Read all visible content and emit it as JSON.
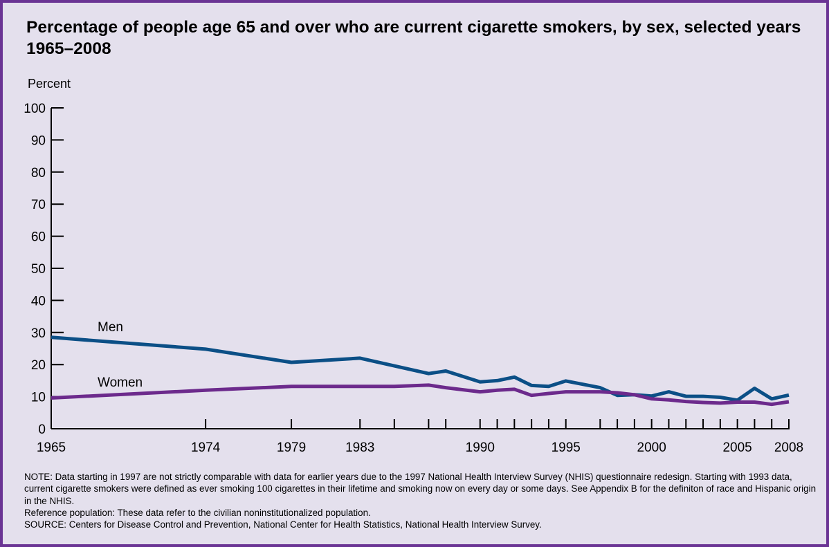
{
  "title": "Percentage of people age 65 and over who are current cigarette smokers, by sex, selected years 1965–2008",
  "chart_data": {
    "type": "line",
    "title": "Percentage of people age 65 and over who are current cigarette smokers, by sex, selected years 1965–2008",
    "ylabel": "Percent",
    "xlabel": "",
    "ylim": [
      0,
      100
    ],
    "xlim": [
      1965,
      2008
    ],
    "y_ticks": [
      0,
      10,
      20,
      30,
      40,
      50,
      60,
      70,
      80,
      90,
      100
    ],
    "x_tick_labels": [
      1965,
      1974,
      1979,
      1983,
      1990,
      1995,
      2000,
      2005,
      2008
    ],
    "x_minor_ticks": [
      1974,
      1979,
      1983,
      1985,
      1987,
      1988,
      1990,
      1991,
      1992,
      1993,
      1994,
      1995,
      1997,
      1998,
      1999,
      2000,
      2001,
      2002,
      2003,
      2004,
      2005,
      2006,
      2007,
      2008
    ],
    "grid": false,
    "legend": "inline labels",
    "series": [
      {
        "name": "Men",
        "color": "#0b4f86",
        "x": [
          1965,
          1974,
          1979,
          1983,
          1985,
          1987,
          1988,
          1990,
          1991,
          1992,
          1993,
          1994,
          1995,
          1997,
          1998,
          1999,
          2000,
          2001,
          2002,
          2003,
          2004,
          2005,
          2006,
          2007,
          2008
        ],
        "values": [
          28.5,
          24.8,
          20.7,
          22.0,
          19.6,
          17.2,
          18.0,
          14.6,
          15.0,
          16.1,
          13.5,
          13.2,
          14.9,
          12.8,
          10.4,
          10.6,
          10.2,
          11.5,
          10.1,
          10.1,
          9.8,
          8.9,
          12.6,
          9.3,
          10.5
        ]
      },
      {
        "name": "Women",
        "color": "#6c2a8c",
        "x": [
          1965,
          1974,
          1979,
          1983,
          1985,
          1987,
          1988,
          1990,
          1991,
          1992,
          1993,
          1994,
          1995,
          1997,
          1998,
          1999,
          2000,
          2001,
          2002,
          2003,
          2004,
          2005,
          2006,
          2007,
          2008
        ],
        "values": [
          9.6,
          12.0,
          13.2,
          13.2,
          13.2,
          13.6,
          12.8,
          11.5,
          12.0,
          12.3,
          10.4,
          11.0,
          11.5,
          11.5,
          11.2,
          10.6,
          9.3,
          9.0,
          8.5,
          8.2,
          8.0,
          8.3,
          8.3,
          7.6,
          8.4
        ]
      }
    ]
  },
  "notes": {
    "note": "NOTE: Data starting in 1997 are not strictly comparable with data for earlier years due to the 1997 National Health Interview Survey (NHIS) questionnaire redesign.  Starting with 1993 data, current cigarette smokers were defined as ever smoking 100 cigarettes in their lifetime and smoking now on every day or some days. See Appendix B for the definiton of race and Hispanic origin in the NHIS.",
    "reference": "Reference population: These data refer to the civilian noninstitutionalized population.",
    "source": "SOURCE: Centers for Disease Control and Prevention, National Center for Health Statistics, National Health Interview Survey."
  },
  "colors": {
    "background": "#e4e0ed",
    "border": "#6a3494",
    "men_line": "#0b4f86",
    "women_line": "#6c2a8c"
  }
}
